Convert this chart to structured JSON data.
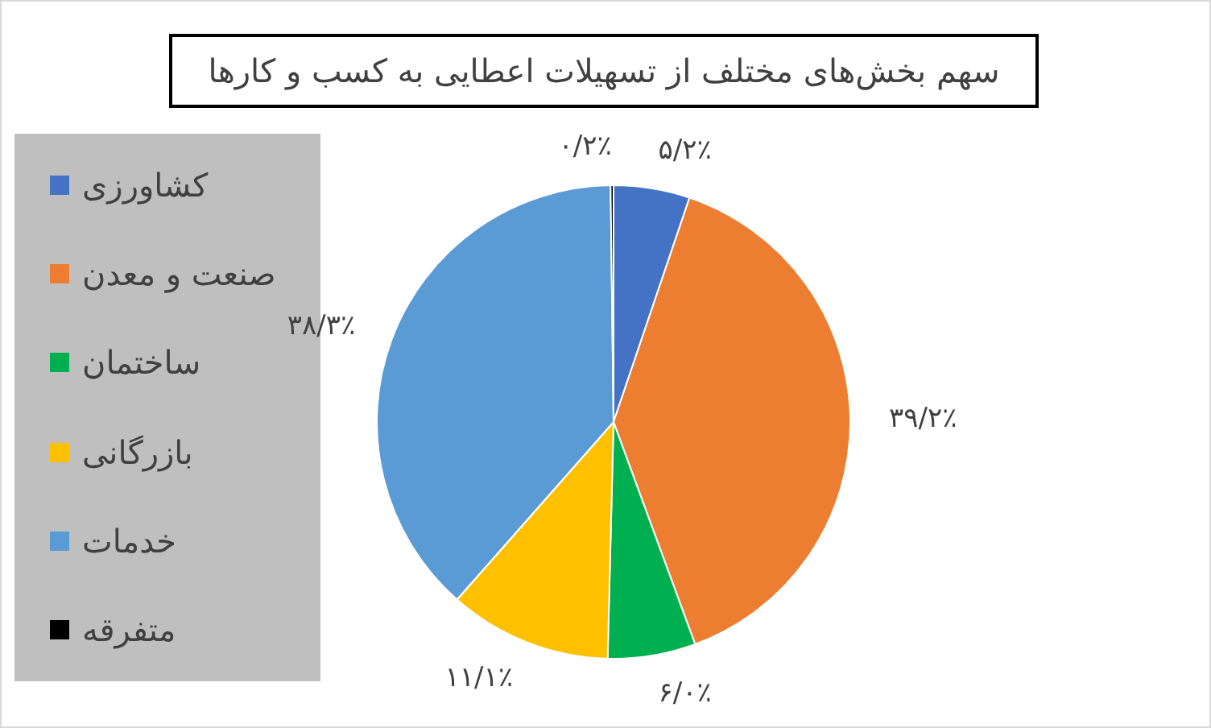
{
  "chart_data": {
    "type": "pie",
    "title": "سهم بخش‌های مختلف از تسهیلات اعطایی به کسب و کارها",
    "categories": [
      "کشاورزی",
      "صنعت و معدن",
      "ساختمان",
      "بازرگانی",
      "خدمات",
      "متفرقه"
    ],
    "values": [
      5.2,
      39.2,
      6.0,
      11.1,
      38.3,
      0.2
    ],
    "colors": [
      "#4472c4",
      "#ed7d31",
      "#00b050",
      "#ffc000",
      "#5b9bd5",
      "#000000"
    ],
    "value_labels": [
      "۵/۲٪",
      "۳۹/۲٪",
      "۶/۰٪",
      "۱۱/۱٪",
      "۳۸/۳٪",
      "۰/۲٪"
    ],
    "legend": "left"
  }
}
